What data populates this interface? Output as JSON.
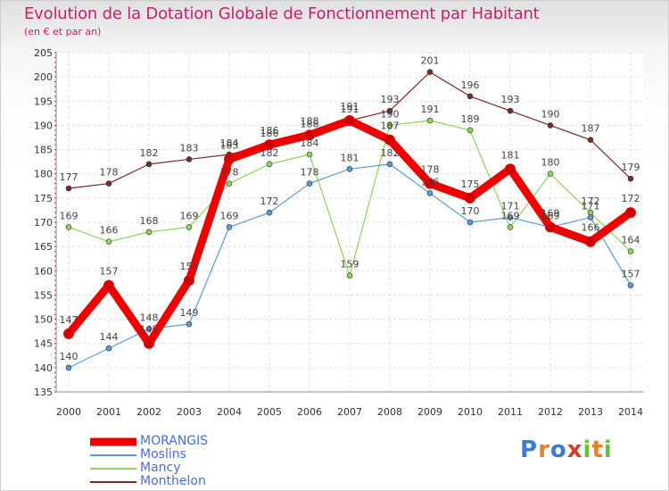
{
  "chart_data": {
    "type": "line",
    "title": "Evolution de la Dotation Globale de Fonctionnement par Habitant",
    "subtitle": "(en € et par an)",
    "x": [
      "2000",
      "2001",
      "2002",
      "2003",
      "2004",
      "2005",
      "2006",
      "2007",
      "2008",
      "2009",
      "2010",
      "2011",
      "2012",
      "2013",
      "2014"
    ],
    "ylim": [
      135,
      205
    ],
    "yticks": [
      135,
      140,
      145,
      150,
      155,
      160,
      165,
      170,
      175,
      180,
      185,
      190,
      195,
      200,
      205
    ],
    "grid": true,
    "legend_position": "bottom-left",
    "series": [
      {
        "name": "MORANGIS",
        "color": "#ee0000",
        "width": 9,
        "values": [
          147,
          157,
          145,
          158,
          183,
          186,
          188,
          191,
          187,
          178,
          175,
          181,
          169,
          166,
          172
        ]
      },
      {
        "name": "Moslins",
        "color": "#5b9bd5",
        "width": 1.2,
        "values": [
          140,
          144,
          148,
          149,
          169,
          172,
          178,
          181,
          182,
          176,
          170,
          171,
          169,
          171,
          157
        ]
      },
      {
        "name": "Mancy",
        "color": "#8fd45a",
        "width": 1.2,
        "values": [
          169,
          166,
          168,
          169,
          178,
          182,
          184,
          159,
          190,
          191,
          189,
          169,
          180,
          172,
          164
        ]
      },
      {
        "name": "Monthelon",
        "color": "#7b2a2a",
        "width": 1.2,
        "values": [
          177,
          178,
          182,
          183,
          184,
          186,
          188,
          191,
          193,
          201,
          196,
          193,
          190,
          187,
          179
        ]
      }
    ]
  },
  "logo": {
    "letters": [
      "P",
      "r",
      "o",
      "x",
      "i",
      "t",
      "i"
    ],
    "colors": [
      "#3a7bd5",
      "#e8822a",
      "#3a7bd5",
      "#d63a2a",
      "#6cbf3a",
      "#e8822a",
      "#6cbf3a"
    ]
  }
}
